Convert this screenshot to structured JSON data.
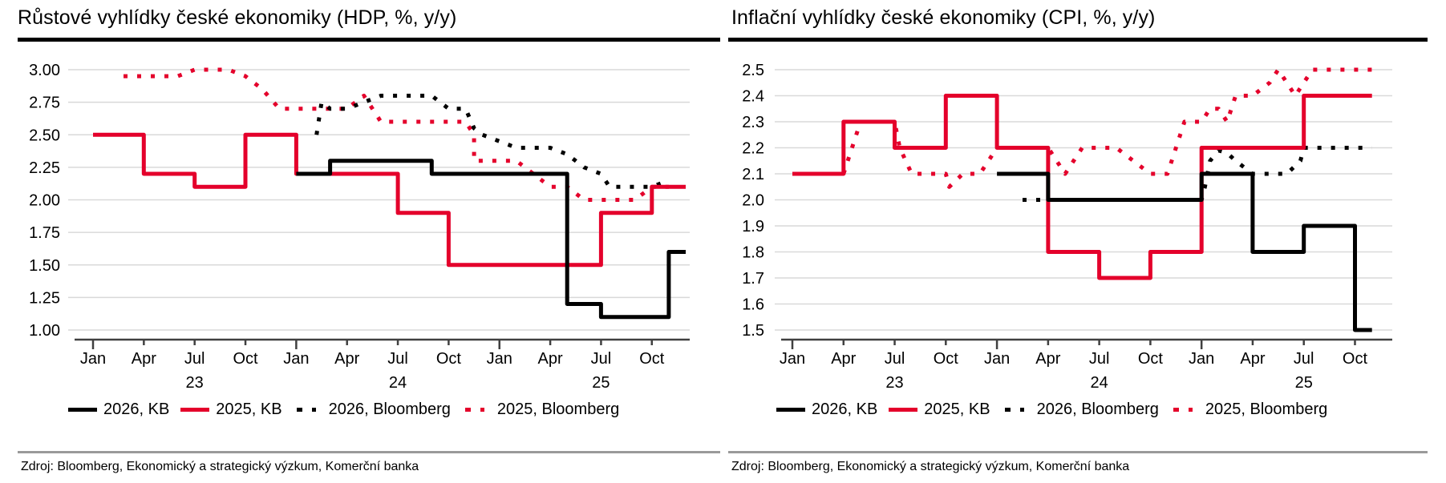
{
  "chart_data": [
    {
      "type": "line",
      "step": true,
      "title": "Růstové vyhlídky české ekonomiky (HDP, %, y/y)",
      "xlabel": "",
      "ylabel": "",
      "ylim": [
        1.0,
        3.0
      ],
      "yticks": [
        "3.00",
        "2.75",
        "2.50",
        "2.25",
        "2.00",
        "1.75",
        "1.50",
        "1.25",
        "1.00"
      ],
      "ytick_values": [
        3.0,
        2.75,
        2.5,
        2.25,
        2.0,
        1.75,
        1.5,
        1.25,
        1.0
      ],
      "xlim_months": [
        0,
        35
      ],
      "xticks": [
        "Jan",
        "Apr",
        "Jul",
        "Oct",
        "Jan",
        "Apr",
        "Jul",
        "Oct",
        "Jan",
        "Apr",
        "Jul",
        "Oct"
      ],
      "xtick_months": [
        0,
        3,
        6,
        9,
        12,
        15,
        18,
        21,
        24,
        27,
        30,
        33
      ],
      "year_labels": [
        {
          "label": "23",
          "month": 6
        },
        {
          "label": "24",
          "month": 18
        },
        {
          "label": "25",
          "month": 30
        }
      ],
      "grid": true,
      "legend_position": "bottom",
      "series": [
        {
          "name": "2026, KB",
          "color": "#000000",
          "style": "solid",
          "points": [
            [
              12,
              2.2
            ],
            [
              14,
              2.2
            ],
            [
              14,
              2.3
            ],
            [
              20,
              2.3
            ],
            [
              20,
              2.2
            ],
            [
              28,
              2.2
            ],
            [
              28,
              1.2
            ],
            [
              30,
              1.2
            ],
            [
              30,
              1.1
            ],
            [
              34,
              1.1
            ],
            [
              34,
              1.6
            ],
            [
              35,
              1.6
            ]
          ]
        },
        {
          "name": "2025, KB",
          "color": "#e4002b",
          "style": "solid",
          "points": [
            [
              0,
              2.5
            ],
            [
              3,
              2.5
            ],
            [
              3,
              2.2
            ],
            [
              6,
              2.2
            ],
            [
              6,
              2.1
            ],
            [
              9,
              2.1
            ],
            [
              9,
              2.5
            ],
            [
              12,
              2.5
            ],
            [
              12,
              2.2
            ],
            [
              18,
              2.2
            ],
            [
              18,
              1.9
            ],
            [
              21,
              1.9
            ],
            [
              21,
              1.5
            ],
            [
              30,
              1.5
            ],
            [
              30,
              1.9
            ],
            [
              33,
              1.9
            ],
            [
              33,
              2.1
            ],
            [
              35,
              2.1
            ]
          ]
        },
        {
          "name": "2026, Bloomberg",
          "color": "#000000",
          "style": "dotted",
          "points": [
            [
              13.2,
              2.5
            ],
            [
              13.5,
              2.75
            ],
            [
              14,
              2.7
            ],
            [
              15,
              2.7
            ],
            [
              16,
              2.75
            ],
            [
              17,
              2.8
            ],
            [
              18,
              2.8
            ],
            [
              19,
              2.8
            ],
            [
              20,
              2.8
            ],
            [
              21,
              2.7
            ],
            [
              22,
              2.7
            ],
            [
              22.5,
              2.55
            ],
            [
              23,
              2.5
            ],
            [
              24,
              2.45
            ],
            [
              25,
              2.4
            ],
            [
              26,
              2.4
            ],
            [
              27,
              2.4
            ],
            [
              28,
              2.35
            ],
            [
              29,
              2.25
            ],
            [
              30,
              2.2
            ],
            [
              30.5,
              2.1
            ],
            [
              31,
              2.1
            ],
            [
              32,
              2.1
            ],
            [
              33,
              2.1
            ],
            [
              34,
              2.15
            ]
          ]
        },
        {
          "name": "2025, Bloomberg",
          "color": "#e4002b",
          "style": "dotted",
          "points": [
            [
              1.8,
              2.95
            ],
            [
              3,
              2.95
            ],
            [
              4,
              2.95
            ],
            [
              5,
              2.95
            ],
            [
              6,
              3.0
            ],
            [
              7,
              3.0
            ],
            [
              8,
              3.0
            ],
            [
              9,
              2.95
            ],
            [
              9.5,
              2.9
            ],
            [
              10,
              2.85
            ],
            [
              11,
              2.7
            ],
            [
              12,
              2.7
            ],
            [
              13,
              2.7
            ],
            [
              14,
              2.7
            ],
            [
              15,
              2.7
            ],
            [
              16,
              2.8
            ],
            [
              16.5,
              2.7
            ],
            [
              17,
              2.6
            ],
            [
              18,
              2.6
            ],
            [
              19,
              2.6
            ],
            [
              20,
              2.6
            ],
            [
              21,
              2.6
            ],
            [
              22,
              2.6
            ],
            [
              22.5,
              2.5
            ],
            [
              22.5,
              2.4
            ],
            [
              22.5,
              2.3
            ],
            [
              23,
              2.3
            ],
            [
              24,
              2.3
            ],
            [
              25,
              2.3
            ],
            [
              26,
              2.2
            ],
            [
              27,
              2.1
            ],
            [
              28,
              2.1
            ],
            [
              29,
              2.0
            ],
            [
              30,
              2.0
            ],
            [
              31,
              2.0
            ],
            [
              32,
              2.0
            ],
            [
              33,
              2.1
            ],
            [
              34,
              2.1
            ]
          ]
        }
      ]
    },
    {
      "type": "line",
      "step": true,
      "title": "Inflační vyhlídky české ekonomiky (CPI, %, y/y)",
      "xlabel": "",
      "ylabel": "",
      "ylim": [
        1.5,
        2.5
      ],
      "yticks": [
        "2.5",
        "2.4",
        "2.3",
        "2.2",
        "2.1",
        "2.0",
        "1.9",
        "1.8",
        "1.7",
        "1.6",
        "1.5"
      ],
      "ytick_values": [
        2.5,
        2.4,
        2.3,
        2.2,
        2.1,
        2.0,
        1.9,
        1.8,
        1.7,
        1.6,
        1.5
      ],
      "xlim_months": [
        0,
        35
      ],
      "xticks": [
        "Jan",
        "Apr",
        "Jul",
        "Oct",
        "Jan",
        "Apr",
        "Jul",
        "Oct",
        "Jan",
        "Apr",
        "Jul",
        "Oct"
      ],
      "xtick_months": [
        0,
        3,
        6,
        9,
        12,
        15,
        18,
        21,
        24,
        27,
        30,
        33
      ],
      "year_labels": [
        {
          "label": "23",
          "month": 6
        },
        {
          "label": "24",
          "month": 18
        },
        {
          "label": "25",
          "month": 30
        }
      ],
      "grid": true,
      "legend_position": "bottom",
      "series": [
        {
          "name": "2026, KB",
          "color": "#000000",
          "style": "solid",
          "points": [
            [
              12,
              2.1
            ],
            [
              15,
              2.1
            ],
            [
              15,
              2.0
            ],
            [
              24,
              2.0
            ],
            [
              24,
              2.1
            ],
            [
              27,
              2.1
            ],
            [
              27,
              1.8
            ],
            [
              30,
              1.8
            ],
            [
              30,
              1.9
            ],
            [
              33,
              1.9
            ],
            [
              33,
              1.5
            ],
            [
              34,
              1.5
            ]
          ]
        },
        {
          "name": "2025, KB",
          "color": "#e4002b",
          "style": "solid",
          "points": [
            [
              0,
              2.1
            ],
            [
              3,
              2.1
            ],
            [
              3,
              2.3
            ],
            [
              6,
              2.3
            ],
            [
              6,
              2.2
            ],
            [
              9,
              2.2
            ],
            [
              9,
              2.4
            ],
            [
              12,
              2.4
            ],
            [
              12,
              2.2
            ],
            [
              15,
              2.2
            ],
            [
              15,
              1.8
            ],
            [
              18,
              1.8
            ],
            [
              18,
              1.7
            ],
            [
              21,
              1.7
            ],
            [
              21,
              1.8
            ],
            [
              24,
              1.8
            ],
            [
              24,
              2.2
            ],
            [
              30,
              2.2
            ],
            [
              30,
              2.4
            ],
            [
              34,
              2.4
            ]
          ]
        },
        {
          "name": "2026, Bloomberg",
          "color": "#000000",
          "style": "dotted",
          "points": [
            [
              13.5,
              2.0
            ],
            [
              15,
              2.0
            ],
            [
              16,
              2.0
            ],
            [
              17,
              2.0
            ],
            [
              18,
              2.0
            ],
            [
              19,
              2.0
            ],
            [
              20,
              2.0
            ],
            [
              21,
              2.0
            ],
            [
              22,
              2.0
            ],
            [
              23,
              2.0
            ],
            [
              24,
              2.0
            ],
            [
              24.2,
              2.05
            ],
            [
              24.5,
              2.15
            ],
            [
              25,
              2.19
            ],
            [
              25.5,
              2.18
            ],
            [
              26,
              2.15
            ],
            [
              27,
              2.1
            ],
            [
              28,
              2.1
            ],
            [
              29,
              2.1
            ],
            [
              29.8,
              2.15
            ],
            [
              30,
              2.2
            ],
            [
              31,
              2.2
            ],
            [
              32,
              2.2
            ],
            [
              33,
              2.2
            ],
            [
              34,
              2.2
            ]
          ]
        },
        {
          "name": "2025, Bloomberg",
          "color": "#e4002b",
          "style": "dotted",
          "points": [
            [
              3,
              2.1
            ],
            [
              3.5,
              2.2
            ],
            [
              4,
              2.3
            ],
            [
              5,
              2.3
            ],
            [
              6,
              2.3
            ],
            [
              6.3,
              2.2
            ],
            [
              7,
              2.1
            ],
            [
              8,
              2.1
            ],
            [
              9,
              2.1
            ],
            [
              9.2,
              2.05
            ],
            [
              10,
              2.1
            ],
            [
              11,
              2.1
            ],
            [
              11.5,
              2.15
            ],
            [
              12,
              2.2
            ],
            [
              13,
              2.2
            ],
            [
              14,
              2.2
            ],
            [
              15,
              2.2
            ],
            [
              15.5,
              2.15
            ],
            [
              16,
              2.1
            ],
            [
              16.5,
              2.15
            ],
            [
              17,
              2.2
            ],
            [
              18,
              2.2
            ],
            [
              19,
              2.2
            ],
            [
              20,
              2.15
            ],
            [
              21,
              2.1
            ],
            [
              22,
              2.1
            ],
            [
              22.5,
              2.2
            ],
            [
              23,
              2.3
            ],
            [
              24,
              2.3
            ],
            [
              24.5,
              2.35
            ],
            [
              25,
              2.35
            ],
            [
              25.5,
              2.3
            ],
            [
              26,
              2.4
            ],
            [
              27,
              2.4
            ],
            [
              28,
              2.45
            ],
            [
              28.5,
              2.5
            ],
            [
              29,
              2.45
            ],
            [
              29.5,
              2.4
            ],
            [
              30,
              2.45
            ],
            [
              30.5,
              2.5
            ],
            [
              31,
              2.5
            ],
            [
              32,
              2.5
            ],
            [
              33,
              2.5
            ],
            [
              34,
              2.5
            ]
          ]
        }
      ]
    }
  ],
  "panels": {
    "left": {
      "title": "Růstové vyhlídky české ekonomiky (HDP, %, y/y)",
      "source": "Zdroj: Bloomberg, Ekonomický a strategický výzkum, Komerční banka"
    },
    "right": {
      "title": "Inflační vyhlídky české ekonomiky (CPI, %, y/y)",
      "source": "Zdroj: Bloomberg, Ekonomický a strategický výzkum, Komerční banka"
    }
  },
  "legend": [
    {
      "label": "2026, KB",
      "color": "#000000",
      "style": "solid"
    },
    {
      "label": "2025, KB",
      "color": "#e4002b",
      "style": "solid"
    },
    {
      "label": "2026, Bloomberg",
      "color": "#000000",
      "style": "dotted"
    },
    {
      "label": "2025, Bloomberg",
      "color": "#e4002b",
      "style": "dotted"
    }
  ],
  "colors": {
    "kb_red": "#e4002b",
    "black": "#000000",
    "grid": "#d9d9d9",
    "axis": "#404040"
  }
}
